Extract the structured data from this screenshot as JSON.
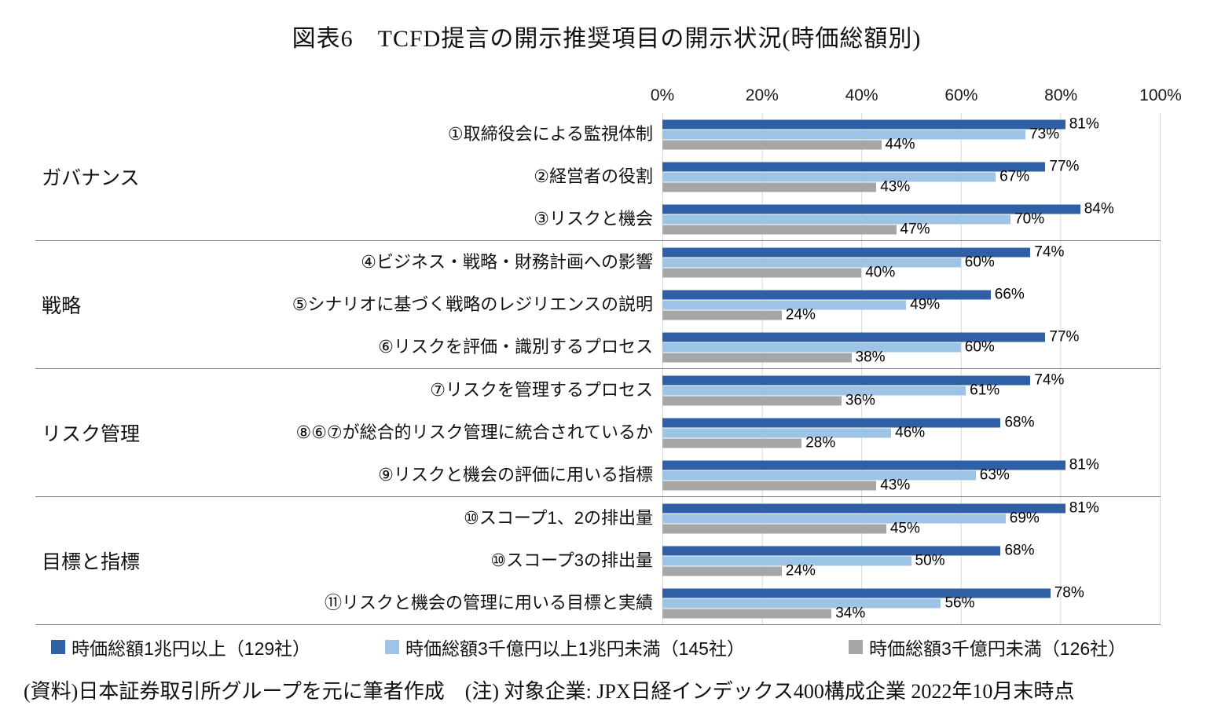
{
  "title": "図表6　TCFD提言の開示推奨項目の開示状況(時価総額別)",
  "chart_data": {
    "type": "bar",
    "orientation": "horizontal",
    "title": "図表6　TCFD提言の開示推奨項目の開示状況(時価総額別)",
    "xlabel": "",
    "ylabel": "",
    "xlim": [
      0,
      100
    ],
    "axis_ticks": [
      "0%",
      "20%",
      "40%",
      "60%",
      "80%",
      "100%"
    ],
    "grid": true,
    "legend_position": "bottom",
    "series": [
      {
        "name": "時価総額1兆円以上（129社）",
        "color": "#2F5FA5"
      },
      {
        "name": "時価総額3千億円以上1兆円未満（145社）",
        "color": "#9DC3E6"
      },
      {
        "name": "時価総額3千億円未満（126社）",
        "color": "#A6A6A6"
      }
    ],
    "groups": [
      {
        "label": "ガバナンス",
        "items": [
          {
            "label": "①取締役会による監視体制",
            "values": [
              81,
              73,
              44
            ]
          },
          {
            "label": "②経営者の役割",
            "values": [
              77,
              67,
              43
            ]
          },
          {
            "label": "③リスクと機会",
            "values": [
              84,
              70,
              47
            ]
          }
        ]
      },
      {
        "label": "戦略",
        "items": [
          {
            "label": "④ビジネス・戦略・財務計画への影響",
            "values": [
              74,
              60,
              40
            ]
          },
          {
            "label": "⑤シナリオに基づく戦略のレジリエンスの説明",
            "values": [
              66,
              49,
              24
            ]
          },
          {
            "label": "⑥リスクを評価・識別するプロセス",
            "values": [
              77,
              60,
              38
            ]
          }
        ]
      },
      {
        "label": "リスク管理",
        "items": [
          {
            "label": "⑦リスクを管理するプロセス",
            "values": [
              74,
              61,
              36
            ]
          },
          {
            "label": "⑧⑥⑦が総合的リスク管理に統合されているか",
            "values": [
              68,
              46,
              28
            ]
          },
          {
            "label": "⑨リスクと機会の評価に用いる指標",
            "values": [
              81,
              63,
              43
            ]
          }
        ]
      },
      {
        "label": "目標と指標",
        "items": [
          {
            "label": "⑩スコープ1、2の排出量",
            "values": [
              81,
              69,
              45
            ]
          },
          {
            "label": "⑩スコープ3の排出量",
            "values": [
              68,
              50,
              24
            ]
          },
          {
            "label": "⑪リスクと機会の管理に用いる目標と実績",
            "values": [
              78,
              56,
              34
            ]
          }
        ]
      }
    ]
  },
  "footer": "(資料)日本証券取引所グループを元に筆者作成　(注) 対象企業: JPX日経インデックス400構成企業 2022年10月末時点"
}
